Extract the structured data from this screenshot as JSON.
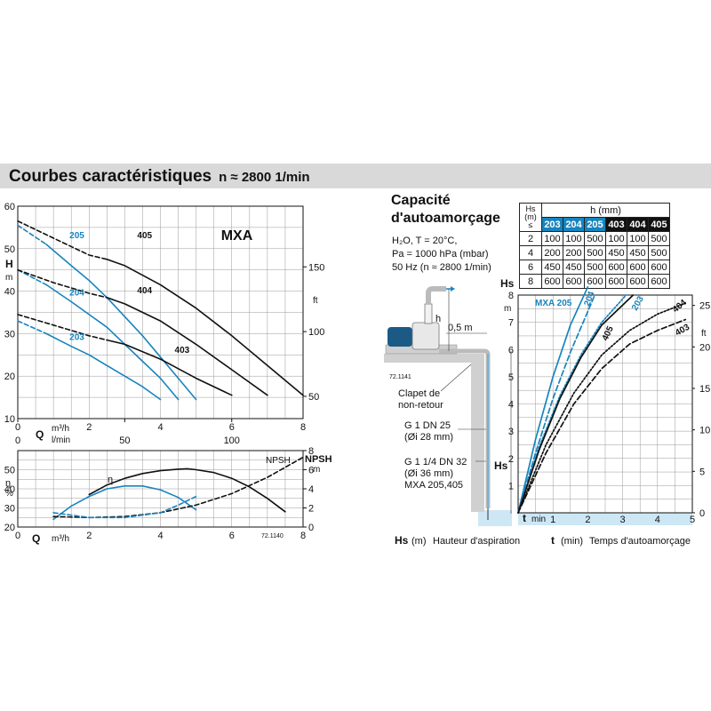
{
  "header": {
    "title": "Courbes caractéristiques",
    "speed": "n ≈ 2800 1/min"
  },
  "colors": {
    "blue": "#1784be",
    "black": "#111111",
    "header_band": "#d9d9d9",
    "well_blue": "#5fb0da"
  },
  "right_panel": {
    "title_line1": "Capacité",
    "title_line2": "d'autoamorçage",
    "conditions": [
      "H₂O, T = 20°C,",
      "Pa = 1000 hPa (mbar)",
      "50 Hz (n ≈ 2800 1/min)"
    ],
    "diagram_labels": {
      "h": "h",
      "distance": "0,5 m",
      "ref": "72.1141",
      "clapet": [
        "Clapet de",
        "non-retour"
      ],
      "g1": "G 1    DN 25",
      "g1_dia": "(Øi 28 mm)",
      "g114": "G 1 1/4  DN 32",
      "g114_dia": "(Øi 36 mm)",
      "g114_models": "MXA 205,405",
      "hs": "Hs"
    },
    "footer_left_symbol": "Hs",
    "footer_left_unit": "(m)",
    "footer_left_text": "Hauteur d'aspiration",
    "footer_right_symbol": "t",
    "footer_right_unit": "(min)",
    "footer_right_text": "Temps d'autoamorçage"
  },
  "table": {
    "col_header_hs": [
      "Hs",
      "(m)",
      "≤"
    ],
    "col_header_h": "h (mm)",
    "models": [
      "203",
      "204",
      "205",
      "403",
      "404",
      "405"
    ],
    "rows": [
      {
        "hs": "2",
        "values": [
          "100",
          "100",
          "500",
          "100",
          "100",
          "500"
        ]
      },
      {
        "hs": "4",
        "values": [
          "200",
          "200",
          "500",
          "450",
          "450",
          "500"
        ]
      },
      {
        "hs": "6",
        "values": [
          "450",
          "450",
          "500",
          "600",
          "600",
          "600"
        ]
      },
      {
        "hs": "8",
        "values": [
          "600",
          "600",
          "600",
          "600",
          "600",
          "600"
        ]
      }
    ]
  },
  "chart_data": [
    {
      "type": "line",
      "title": "MXA",
      "ylabel": "H",
      "ylabel_unit": "m",
      "y2label": "ft",
      "xlabel": "Q",
      "x_unit_m3h": "m³/h",
      "x_unit_lmin": "l/min",
      "xlim": [
        0,
        8
      ],
      "ylim": [
        10,
        60
      ],
      "x_ticks": [
        "0",
        "2",
        "4",
        "6",
        "8"
      ],
      "y_ticks": [
        "10",
        "20",
        "30",
        "40",
        "50",
        "60"
      ],
      "x2_ticks": [
        "0",
        "50",
        "100"
      ],
      "y2_ticks": [
        "50",
        "100",
        "150"
      ],
      "grid": true,
      "series": [
        {
          "name": "205",
          "color": "blue",
          "x": [
            0,
            0.8,
            1.5,
            2,
            2.5,
            3,
            3.5,
            4,
            4.5,
            5
          ],
          "y": [
            55.5,
            51,
            46,
            42.5,
            38.5,
            34,
            29.5,
            24.5,
            19.5,
            14.5
          ],
          "dashed_until": 0.8
        },
        {
          "name": "204",
          "color": "blue",
          "x": [
            0,
            0.8,
            1.5,
            2,
            2.5,
            3,
            3.5,
            4,
            4.5
          ],
          "y": [
            45,
            41.5,
            37.5,
            34.5,
            31.5,
            27.5,
            23.5,
            19.5,
            14.5
          ],
          "dashed_until": 0.8
        },
        {
          "name": "203",
          "color": "blue",
          "x": [
            0,
            0.8,
            1.5,
            2,
            2.5,
            3,
            3.5,
            4
          ],
          "y": [
            33,
            30,
            27,
            25,
            22.5,
            20,
            17.5,
            14.5
          ],
          "dashed_until": 0.8
        },
        {
          "name": "405",
          "color": "black",
          "x": [
            0,
            1,
            2,
            2.5,
            3,
            4,
            5,
            6,
            7,
            8
          ],
          "y": [
            56.5,
            52.5,
            48.5,
            47.5,
            46,
            41.5,
            36,
            29.5,
            22.5,
            15.5
          ],
          "dashed_until": 2.5
        },
        {
          "name": "404",
          "color": "black",
          "x": [
            0,
            1,
            2,
            2.5,
            3,
            4,
            5,
            6,
            7
          ],
          "y": [
            45,
            42,
            39.5,
            38.5,
            37,
            33,
            27.5,
            21.5,
            15.5
          ],
          "dashed_until": 2.5
        },
        {
          "name": "403",
          "color": "black",
          "x": [
            0,
            1,
            2,
            2.5,
            3,
            4,
            5,
            6
          ],
          "y": [
            34.5,
            32,
            29.5,
            28.5,
            27.5,
            24,
            19.5,
            15.5
          ],
          "dashed_until": 2.5
        }
      ],
      "labels": [
        {
          "text": "MXA",
          "x": 5.7,
          "y": 52
        },
        {
          "text": "205",
          "color": "blue",
          "x": 1.45,
          "y": 52.5
        },
        {
          "text": "204",
          "color": "blue",
          "x": 1.45,
          "y": 39
        },
        {
          "text": "203",
          "color": "blue",
          "x": 1.45,
          "y": 28.5
        },
        {
          "text": "405",
          "color": "black",
          "x": 3.35,
          "y": 52.5
        },
        {
          "text": "404",
          "color": "black",
          "x": 3.35,
          "y": 39.5
        },
        {
          "text": "403",
          "color": "black",
          "x": 4.4,
          "y": 25.5
        }
      ]
    },
    {
      "type": "line",
      "title": "",
      "ylabel": "η",
      "ylabel_unit": "%",
      "y2label": "NPSH",
      "y2label_unit": "m",
      "xlabel": "Q",
      "x_unit": "m³/h",
      "ref": "72.1140",
      "curve_label_eta": "η",
      "curve_label_npsh": "NPSH",
      "xlim": [
        0,
        8
      ],
      "ylim": [
        20,
        60
      ],
      "y2lim": [
        0,
        8
      ],
      "x_ticks": [
        "0",
        "2",
        "4",
        "6",
        "8"
      ],
      "y_ticks": [
        "20",
        "30",
        "40",
        "50"
      ],
      "y2_ticks": [
        "0",
        "2",
        "4",
        "6",
        "8"
      ],
      "grid": true,
      "series": [
        {
          "name": "η 4xx",
          "color": "black",
          "x": [
            2,
            2.5,
            3,
            3.5,
            4,
            4.5,
            4.75,
            5,
            5.5,
            6,
            6.5,
            7,
            7.5
          ],
          "y": [
            37,
            42,
            45.5,
            48,
            49.5,
            50.3,
            50.5,
            50,
            48.5,
            45.5,
            41,
            35,
            28
          ]
        },
        {
          "name": "η 2xx",
          "color": "blue",
          "x": [
            1,
            1.5,
            2,
            2.5,
            3,
            3.5,
            4,
            4.5,
            5
          ],
          "y": [
            24,
            31,
            36,
            40,
            41.5,
            41.5,
            39.5,
            35.5,
            29
          ]
        },
        {
          "name": "NPSH 4xx",
          "color": "black",
          "axis": "y2",
          "dashed": true,
          "x": [
            1,
            2,
            3,
            4,
            5,
            6,
            7,
            8
          ],
          "y": [
            1.1,
            1.0,
            1.1,
            1.5,
            2.3,
            3.5,
            5.2,
            7.3
          ]
        },
        {
          "name": "NPSH 2xx",
          "color": "blue",
          "axis": "y2",
          "dashed": true,
          "x": [
            1,
            2,
            3,
            4,
            4.5,
            5
          ],
          "y": [
            1.5,
            1.0,
            1.0,
            1.5,
            2.3,
            3.2
          ]
        }
      ]
    },
    {
      "type": "line",
      "title": "",
      "ylabel": "Hs",
      "ylabel_unit": "m",
      "y2label": "ft",
      "xlabel": "t",
      "x_unit": "min",
      "xlim": [
        0,
        5
      ],
      "ylim": [
        0,
        8
      ],
      "x_ticks": [
        "0",
        "1",
        "2",
        "3",
        "4",
        "5"
      ],
      "y_ticks": [
        "1",
        "2",
        "3",
        "4",
        "5",
        "6",
        "7",
        "8"
      ],
      "y2_ticks": [
        "0",
        "5",
        "10",
        "15",
        "20",
        "25"
      ],
      "grid": true,
      "series": [
        {
          "name": "MXA 205",
          "color": "blue",
          "style": "solid",
          "x": [
            0,
            0.5,
            1,
            1.5,
            2
          ],
          "y": [
            0,
            2.7,
            5,
            6.9,
            8.3
          ]
        },
        {
          "name": "204",
          "color": "blue",
          "style": "dashed",
          "x": [
            0,
            0.5,
            1,
            1.5,
            2,
            2.2
          ],
          "y": [
            0,
            2.2,
            4.2,
            5.9,
            7.4,
            8
          ]
        },
        {
          "name": "203",
          "color": "blue",
          "style": "dotted",
          "x": [
            0,
            0.6,
            1.2,
            1.8,
            2.4,
            3.1
          ],
          "y": [
            0,
            2.4,
            4.3,
            5.8,
            7,
            8
          ]
        },
        {
          "name": "405",
          "color": "black",
          "style": "solid",
          "x": [
            0,
            0.6,
            1.2,
            1.8,
            2.4,
            3.3
          ],
          "y": [
            0,
            2.3,
            4.2,
            5.7,
            6.9,
            8
          ]
        },
        {
          "name": "404",
          "color": "black",
          "style": "dotted",
          "x": [
            0,
            0.8,
            1.6,
            2.4,
            3.2,
            4,
            4.8
          ],
          "y": [
            0,
            2.5,
            4.4,
            5.8,
            6.7,
            7.3,
            7.7
          ]
        },
        {
          "name": "403",
          "color": "black",
          "style": "dashed",
          "x": [
            0,
            0.8,
            1.6,
            2.4,
            3.2,
            4,
            4.8
          ],
          "y": [
            0,
            2.2,
            4,
            5.3,
            6.2,
            6.7,
            7.1
          ]
        }
      ]
    }
  ]
}
